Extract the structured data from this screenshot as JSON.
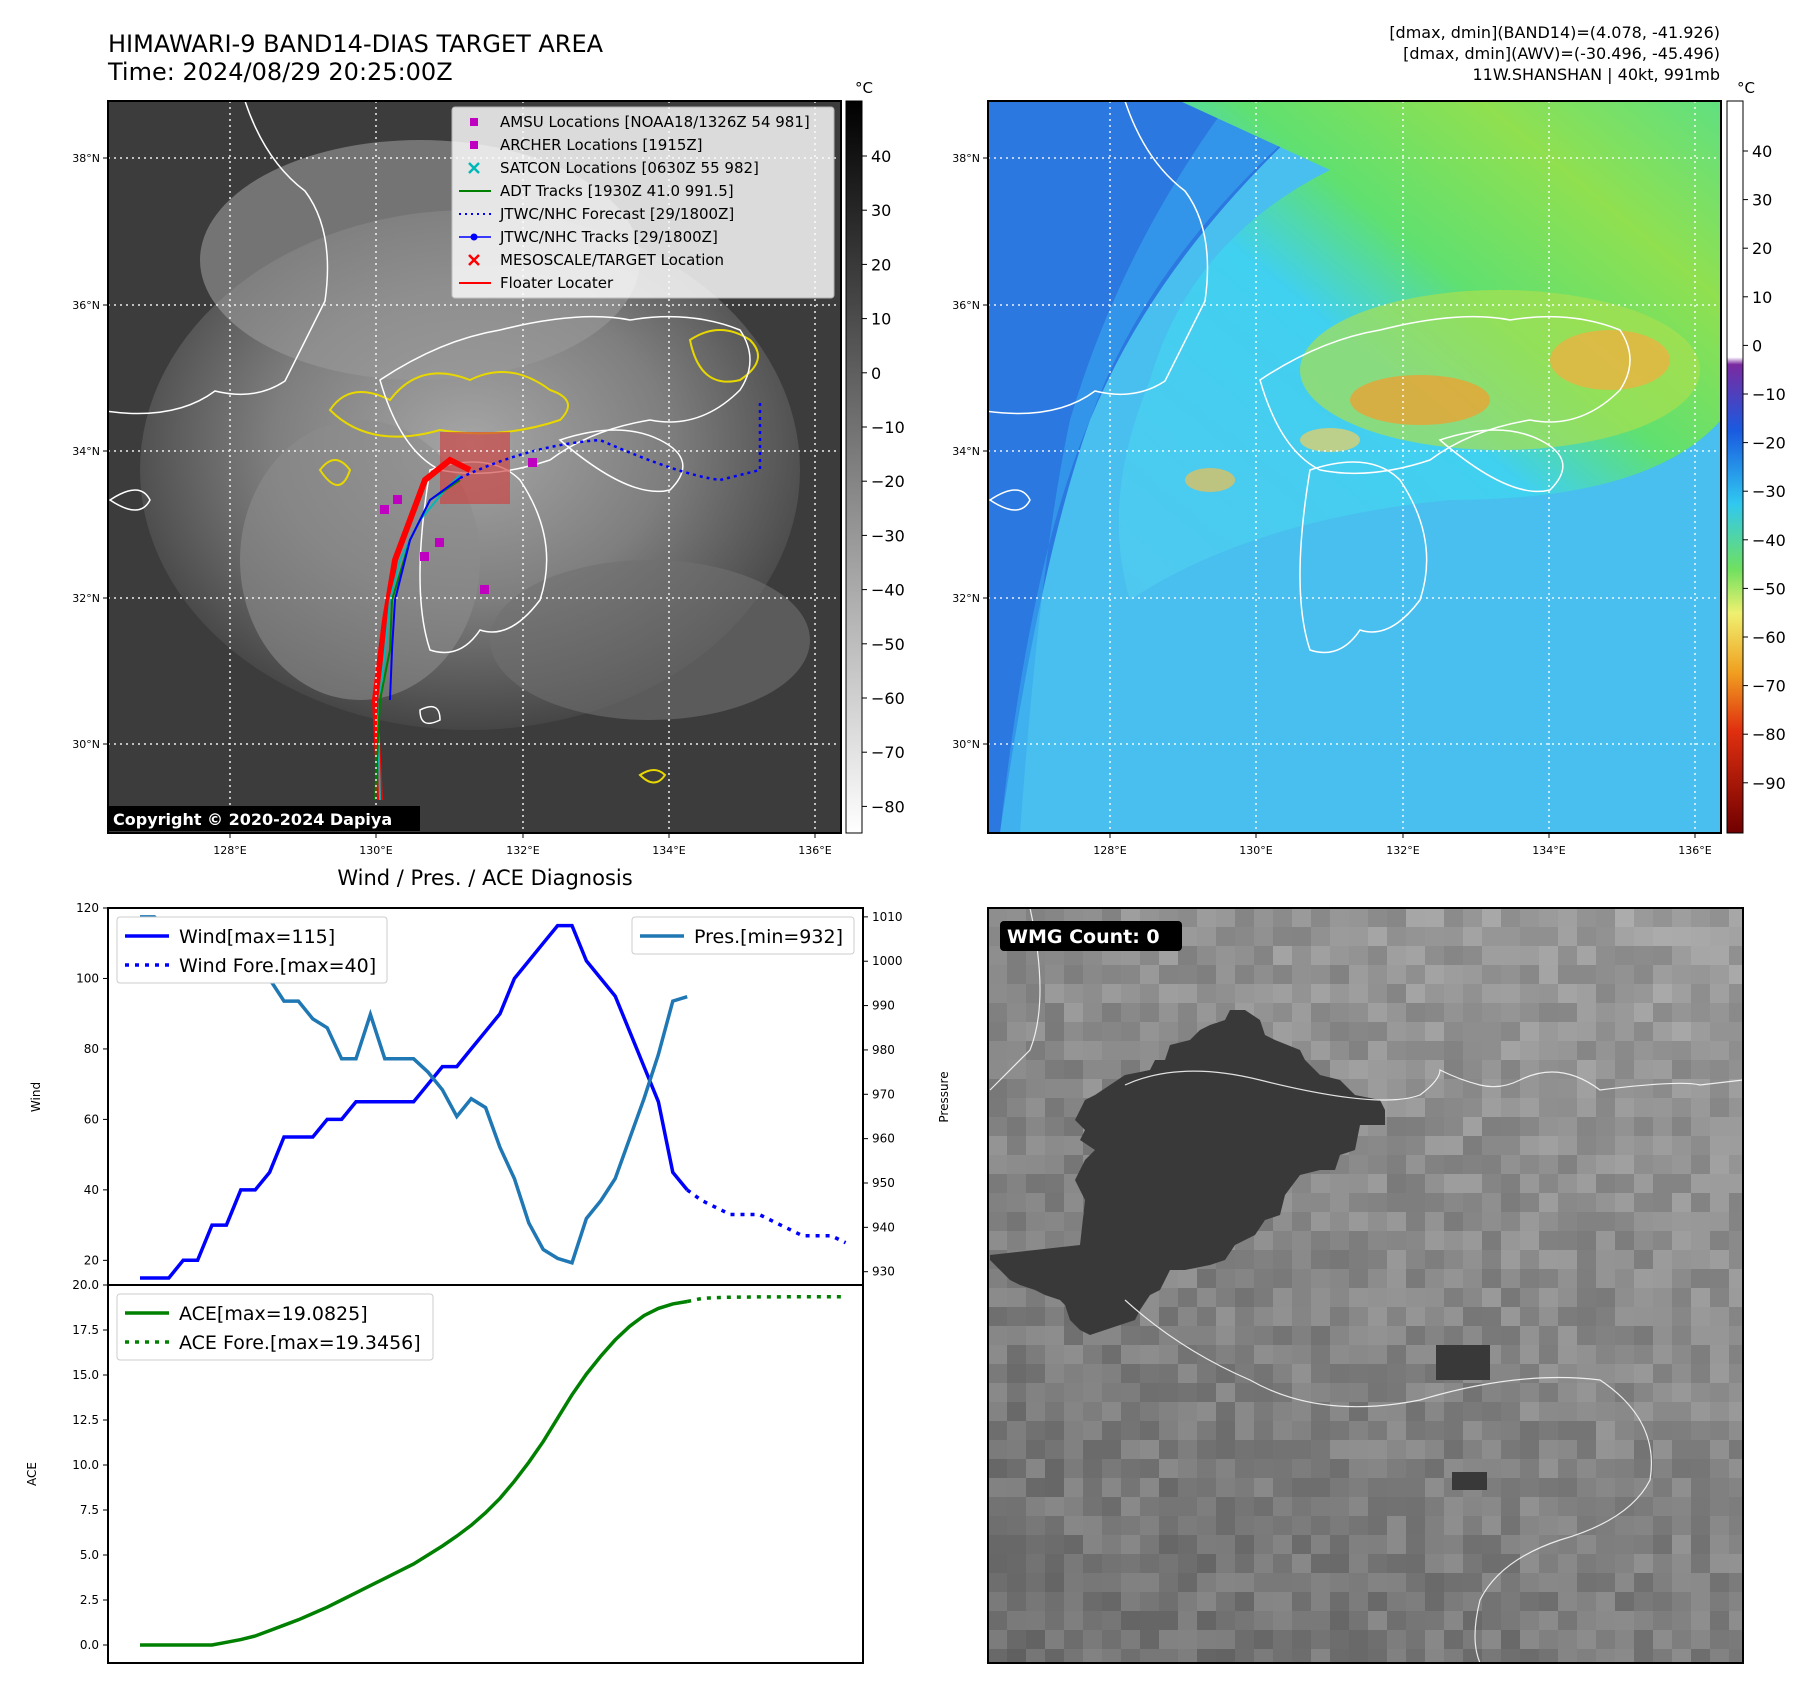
{
  "header": {
    "title_line1": "HIMAWARI-9 BAND14-DIAS TARGET AREA",
    "title_line2": "Time: 2024/08/29 20:25:00Z",
    "info_line1": "[dmax, dmin](BAND14)=(4.078, -41.926)",
    "info_line2": "[dmax, dmin](AWV)=(-30.496, -45.496)",
    "info_line3": "11W.SHANSHAN | 40kt, 991mb"
  },
  "ir_map": {
    "lon_ticks": [
      "128°E",
      "130°E",
      "132°E",
      "134°E",
      "136°E"
    ],
    "lat_ticks": [
      "38°N",
      "36°N",
      "34°N",
      "32°N",
      "30°N"
    ],
    "copyright": "Copyright © 2020-2024 Dapiya",
    "colorbar_unit": "°C",
    "colorbar_ticks": [
      "40",
      "30",
      "20",
      "10",
      "0",
      "−10",
      "−20",
      "−30",
      "−40",
      "−50",
      "−60",
      "−70",
      "−80"
    ],
    "legend": [
      {
        "label": "AMSU Locations [NOAA18/1326Z 54 981]",
        "color": "#c000c0",
        "marker": "square"
      },
      {
        "label": "ARCHER Locations [1915Z]",
        "color": "#c000c0",
        "marker": "square"
      },
      {
        "label": "SATCON Locations [0630Z 55 982]",
        "color": "#00b8b8",
        "marker": "x"
      },
      {
        "label": "ADT Tracks [1930Z 41.0 991.5]",
        "color": "#008000",
        "marker": "line"
      },
      {
        "label": "JTWC/NHC Forecast [29/1800Z]",
        "color": "#0000ff",
        "marker": "dotted"
      },
      {
        "label": "JTWC/NHC Tracks [29/1800Z]",
        "color": "#0000ff",
        "marker": "line-dot"
      },
      {
        "label": "MESOSCALE/TARGET Location",
        "color": "#ff0000",
        "marker": "x"
      },
      {
        "label": "Floater Locater",
        "color": "#ff0000",
        "marker": "line"
      }
    ]
  },
  "wv_map": {
    "lon_ticks": [
      "128°E",
      "130°E",
      "132°E",
      "134°E",
      "136°E"
    ],
    "lat_ticks": [
      "38°N",
      "36°N",
      "34°N",
      "32°N",
      "30°N"
    ],
    "colorbar_unit": "°C",
    "colorbar_ticks": [
      "40",
      "30",
      "20",
      "10",
      "0",
      "−10",
      "−20",
      "−30",
      "−40",
      "−50",
      "−60",
      "−70",
      "−80",
      "−90"
    ]
  },
  "wmg": {
    "label": "WMG Count: 0"
  },
  "chart_data": [
    {
      "type": "line",
      "title": "Wind / Pres. / ACE Diagnosis",
      "ylabel": "Wind",
      "ylabel_right": "Pressure",
      "ylim": [
        13,
        120
      ],
      "ylim_right": [
        927,
        1012
      ],
      "yticks": [
        20,
        40,
        60,
        80,
        100,
        120
      ],
      "yticks_right": [
        930,
        940,
        950,
        960,
        970,
        980,
        990,
        1000,
        1010
      ],
      "series": [
        {
          "name": "Wind[max=115]",
          "color": "#0000ff",
          "style": "solid",
          "axis": "left",
          "values": [
            15,
            15,
            15,
            20,
            20,
            30,
            30,
            40,
            40,
            45,
            55,
            55,
            55,
            60,
            60,
            65,
            65,
            65,
            65,
            65,
            70,
            75,
            75,
            80,
            85,
            90,
            100,
            105,
            110,
            115,
            115,
            105,
            100,
            95,
            85,
            75,
            65,
            45,
            40
          ]
        },
        {
          "name": "Wind Fore.[max=40]",
          "color": "#0000ff",
          "style": "dotted",
          "axis": "left",
          "offset": 38,
          "values": [
            40,
            37,
            35,
            33,
            33,
            33,
            31,
            29,
            27,
            27,
            27,
            25
          ]
        },
        {
          "name": "Pres.[min=932]",
          "color": "#1f77b4",
          "style": "solid",
          "axis": "right",
          "values": [
            1010,
            1010,
            1007,
            1007,
            1009,
            1009,
            1005,
            1003,
            1000,
            996,
            991,
            991,
            987,
            985,
            978,
            978,
            988,
            978,
            978,
            978,
            975,
            971,
            965,
            969,
            967,
            958,
            951,
            941,
            935,
            933,
            932,
            942,
            946,
            951,
            960,
            969,
            979,
            991,
            992
          ]
        }
      ]
    },
    {
      "type": "line",
      "ylabel": "ACE",
      "ylim": [
        -1.0,
        20.0
      ],
      "yticks": [
        0.0,
        2.5,
        5.0,
        7.5,
        10.0,
        12.5,
        15.0,
        17.5,
        20.0
      ],
      "series": [
        {
          "name": "ACE[max=19.0825]",
          "color": "#008000",
          "style": "solid",
          "values": [
            0,
            0,
            0,
            0,
            0,
            0,
            0.15,
            0.3,
            0.5,
            0.8,
            1.1,
            1.4,
            1.75,
            2.1,
            2.5,
            2.9,
            3.3,
            3.7,
            4.1,
            4.5,
            5.0,
            5.5,
            6.05,
            6.65,
            7.35,
            8.15,
            9.1,
            10.15,
            11.3,
            12.6,
            13.9,
            15.05,
            16.05,
            16.95,
            17.7,
            18.3,
            18.7,
            18.95,
            19.0825
          ]
        },
        {
          "name": "ACE Fore.[max=19.3456]",
          "color": "#008000",
          "style": "dotted",
          "offset": 38,
          "values": [
            19.0825,
            19.25,
            19.3,
            19.32,
            19.33,
            19.34,
            19.34,
            19.345,
            19.345,
            19.3456,
            19.3456,
            19.3456
          ]
        }
      ]
    }
  ]
}
